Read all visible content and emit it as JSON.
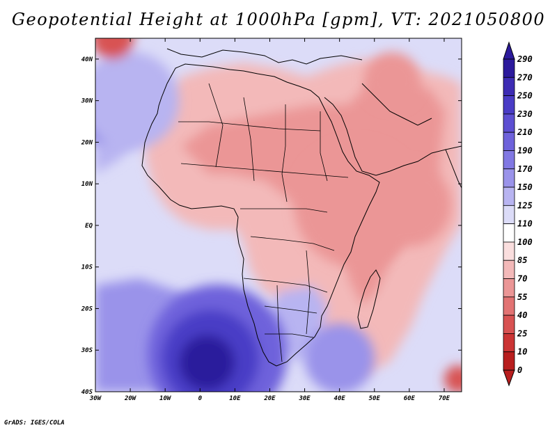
{
  "title": "Geopotential Height at 1000hPa [gpm], VT: 2021050800",
  "credit": "GrADS: IGES/COLA",
  "map": {
    "lon_range": [
      -30,
      75
    ],
    "lat_range": [
      -40,
      45
    ],
    "lon_ticks": [
      {
        "value": -30,
        "label": "30W"
      },
      {
        "value": -20,
        "label": "20W"
      },
      {
        "value": -10,
        "label": "10W"
      },
      {
        "value": 0,
        "label": "0"
      },
      {
        "value": 10,
        "label": "10E"
      },
      {
        "value": 20,
        "label": "20E"
      },
      {
        "value": 30,
        "label": "30E"
      },
      {
        "value": 40,
        "label": "40E"
      },
      {
        "value": 50,
        "label": "50E"
      },
      {
        "value": 60,
        "label": "60E"
      },
      {
        "value": 70,
        "label": "70E"
      }
    ],
    "lat_ticks": [
      {
        "value": 40,
        "label": "40N"
      },
      {
        "value": 30,
        "label": "30N"
      },
      {
        "value": 20,
        "label": "20N"
      },
      {
        "value": 10,
        "label": "10N"
      },
      {
        "value": 0,
        "label": "EQ"
      },
      {
        "value": -10,
        "label": "10S"
      },
      {
        "value": -20,
        "label": "20S"
      },
      {
        "value": -30,
        "label": "30S"
      },
      {
        "value": -40,
        "label": "40S"
      }
    ]
  },
  "colorbar": {
    "levels": [
      "290",
      "270",
      "250",
      "230",
      "210",
      "190",
      "170",
      "150",
      "125",
      "110",
      "100",
      "85",
      "70",
      "55",
      "40",
      "25",
      "10",
      "0"
    ],
    "colors": [
      "#2c1a9c",
      "#3d2cb4",
      "#4a3cc6",
      "#5d4fd2",
      "#6e62db",
      "#8178e3",
      "#9a93ea",
      "#b8b4f1",
      "#dcdcf8",
      "#ffffff",
      "#fadede",
      "#f3b9b9",
      "#eb9696",
      "#e27373",
      "#d85252",
      "#cb3434",
      "#b81e1e"
    ]
  },
  "field": {
    "blobs": [
      {
        "lon": 5,
        "lat": -31,
        "r": 20,
        "level": 4
      },
      {
        "lon": 3,
        "lat": -32,
        "r": 14,
        "level": 2
      },
      {
        "lon": 2,
        "lat": -33,
        "r": 8,
        "level": 0
      },
      {
        "lon": -27,
        "lat": 28,
        "r": 10,
        "level": 5
      },
      {
        "lon": -20,
        "lat": 30,
        "r": 14,
        "level": 7
      },
      {
        "lon": 40,
        "lat": -32,
        "r": 10,
        "level": 6
      },
      {
        "lon": 45,
        "lat": 5,
        "r": 18,
        "level": 12
      },
      {
        "lon": 60,
        "lat": 5,
        "r": 12,
        "level": 12
      },
      {
        "lon": 55,
        "lat": 35,
        "r": 8,
        "level": 12
      },
      {
        "lon": -25,
        "lat": 45,
        "r": 6,
        "level": 14
      },
      {
        "lon": 74,
        "lat": -37,
        "r": 4,
        "level": 14
      }
    ]
  }
}
